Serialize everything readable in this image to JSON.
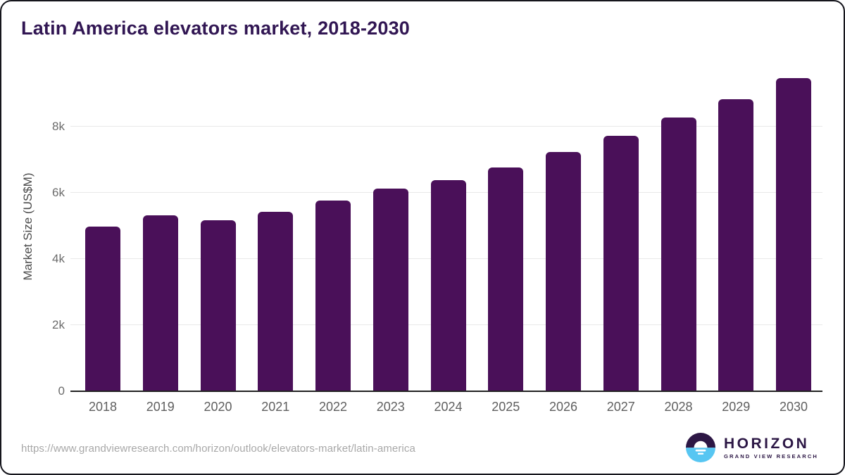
{
  "title": "Latin America elevators market, 2018-2030",
  "chart_data": {
    "type": "bar",
    "categories": [
      "2018",
      "2019",
      "2020",
      "2021",
      "2022",
      "2023",
      "2024",
      "2025",
      "2026",
      "2027",
      "2028",
      "2029",
      "2030"
    ],
    "values": [
      4950,
      5300,
      5150,
      5400,
      5750,
      6100,
      6350,
      6750,
      7200,
      7700,
      8250,
      8800,
      9450
    ],
    "title": "Latin America elevators market, 2018-2030",
    "xlabel": "",
    "ylabel": "Market Size (US$M)",
    "ylim": [
      0,
      9950
    ],
    "yticks": [
      {
        "value": 0,
        "label": "0"
      },
      {
        "value": 2000,
        "label": "2k"
      },
      {
        "value": 4000,
        "label": "4k"
      },
      {
        "value": 6000,
        "label": "6k"
      },
      {
        "value": 8000,
        "label": "8k"
      }
    ],
    "grid": true,
    "legend": "none",
    "bar_color": "#4a1059"
  },
  "footer": {
    "url": "https://www.grandviewresearch.com/horizon/outlook/elevators-market/latin-america",
    "logo": {
      "name": "HORIZON",
      "subtitle": "GRAND VIEW RESEARCH",
      "purple": "#2d1745",
      "blue": "#57c6f2"
    }
  },
  "colors": {
    "bar": "#4a1059",
    "title": "#311653",
    "gridline": "#e9e9e9",
    "axis_line": "#222222",
    "tick_label": "#5f5f5f",
    "background": "#ffffff"
  }
}
